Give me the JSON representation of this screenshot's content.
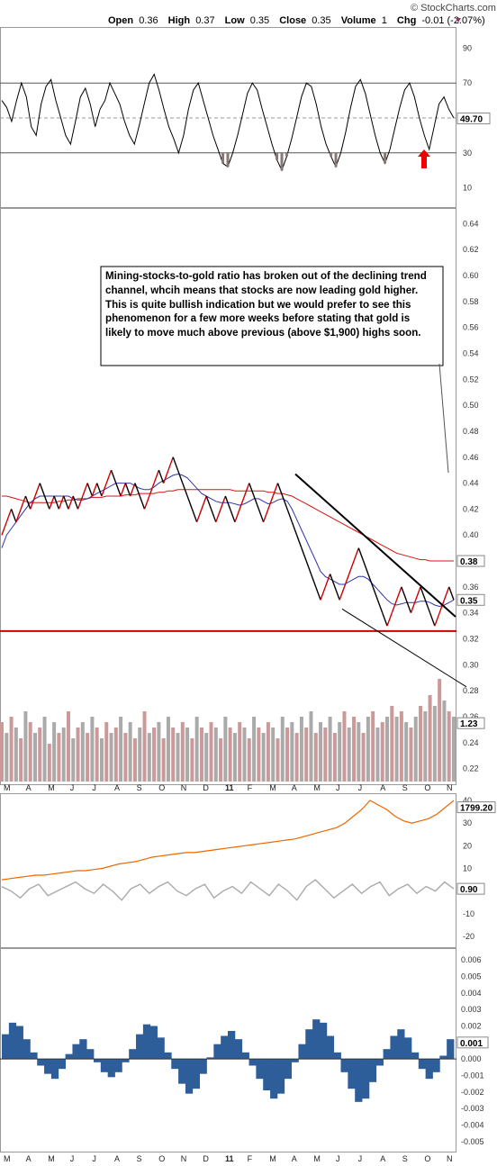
{
  "watermark": "© StockCharts.com",
  "header": {
    "open_label": "Open",
    "open": "0.36",
    "high_label": "High",
    "high": "0.37",
    "low_label": "Low",
    "low": "0.35",
    "close_label": "Close",
    "close": "0.35",
    "volume_label": "Volume",
    "volume": "1",
    "chg_label": "Chg",
    "chg": "-0.01 (-2.07%)",
    "chg_icon": "down-triangle-icon"
  },
  "annotation": "Mining-stocks-to-gold ratio has broken out of the declining trend channel, whcih means that stocks are now leading gold higher. This is quite bullish indication but we would prefer to see this phenomenon for a few more weeks before stating that gold is likely to move much above previous (above $1,900) highs soon.",
  "colors": {
    "price": "#000000",
    "up_bar": "#cc0000",
    "ma_short": "#3333aa",
    "ma_long": "#dd1111",
    "support": "#cc0000",
    "volume_a": "#cc9999",
    "volume_b": "#aaaaaa",
    "gold": "#ee6600",
    "corr": "#aaaaaa",
    "macd_hist": "#2e5e99",
    "arrow": "#ee0000"
  },
  "x_axis_months": [
    "M",
    "A",
    "M",
    "J",
    "J",
    "A",
    "S",
    "O",
    "N",
    "D",
    "11",
    "F",
    "M",
    "A",
    "M",
    "J",
    "J",
    "A",
    "S",
    "O",
    "N"
  ],
  "chart_data": [
    {
      "type": "line",
      "name": "rsi-panel",
      "yticks": [
        10,
        30,
        50,
        70,
        90
      ],
      "ylim": [
        0,
        100
      ],
      "bands": [
        30,
        70
      ],
      "last_value": "49.70",
      "values": [
        60,
        56,
        48,
        60,
        70,
        62,
        45,
        40,
        58,
        68,
        72,
        60,
        50,
        40,
        35,
        48,
        62,
        67,
        58,
        45,
        55,
        60,
        70,
        64,
        58,
        48,
        40,
        35,
        46,
        58,
        70,
        75,
        66,
        55,
        45,
        38,
        30,
        40,
        55,
        66,
        70,
        60,
        50,
        40,
        32,
        24,
        22,
        30,
        40,
        52,
        64,
        70,
        66,
        55,
        45,
        35,
        26,
        20,
        28,
        38,
        50,
        62,
        70,
        68,
        58,
        45,
        35,
        28,
        22,
        30,
        42,
        56,
        68,
        72,
        64,
        52,
        40,
        30,
        24,
        32,
        44,
        56,
        66,
        70,
        62,
        50,
        40,
        32,
        45,
        58,
        62,
        55,
        50
      ]
    },
    {
      "type": "line",
      "name": "ratio-panel",
      "yticks": [
        0.22,
        0.24,
        0.26,
        0.28,
        0.3,
        0.32,
        0.34,
        0.36,
        0.38,
        0.4,
        0.42,
        0.44,
        0.46,
        0.48,
        0.5,
        0.52,
        0.54,
        0.56,
        0.58,
        0.6,
        0.62,
        0.64
      ],
      "ylim": [
        0.21,
        0.65
      ],
      "last_close": "0.35",
      "ma_label": "0.38",
      "volume_label": "1.23",
      "close": [
        0.4,
        0.41,
        0.42,
        0.41,
        0.42,
        0.43,
        0.42,
        0.43,
        0.44,
        0.43,
        0.42,
        0.43,
        0.42,
        0.43,
        0.42,
        0.43,
        0.42,
        0.43,
        0.44,
        0.43,
        0.44,
        0.43,
        0.44,
        0.45,
        0.44,
        0.43,
        0.44,
        0.43,
        0.44,
        0.43,
        0.42,
        0.43,
        0.44,
        0.45,
        0.44,
        0.45,
        0.46,
        0.45,
        0.44,
        0.43,
        0.42,
        0.41,
        0.42,
        0.43,
        0.42,
        0.41,
        0.42,
        0.43,
        0.42,
        0.41,
        0.42,
        0.43,
        0.44,
        0.43,
        0.42,
        0.41,
        0.42,
        0.43,
        0.44,
        0.43,
        0.42,
        0.41,
        0.4,
        0.39,
        0.38,
        0.37,
        0.36,
        0.35,
        0.36,
        0.37,
        0.36,
        0.35,
        0.36,
        0.37,
        0.38,
        0.39,
        0.38,
        0.37,
        0.36,
        0.35,
        0.34,
        0.33,
        0.34,
        0.35,
        0.36,
        0.35,
        0.34,
        0.35,
        0.36,
        0.35,
        0.34,
        0.33,
        0.34,
        0.35,
        0.36,
        0.35
      ],
      "ma_short": [
        0.39,
        0.4,
        0.405,
        0.41,
        0.415,
        0.42,
        0.425,
        0.428,
        0.43,
        0.43,
        0.43,
        0.43,
        0.43,
        0.43,
        0.43,
        0.428,
        0.427,
        0.427,
        0.428,
        0.43,
        0.432,
        0.434,
        0.436,
        0.438,
        0.44,
        0.44,
        0.44,
        0.44,
        0.438,
        0.436,
        0.435,
        0.435,
        0.437,
        0.44,
        0.442,
        0.444,
        0.446,
        0.447,
        0.446,
        0.444,
        0.44,
        0.436,
        0.432,
        0.43,
        0.428,
        0.426,
        0.425,
        0.425,
        0.425,
        0.424,
        0.423,
        0.424,
        0.426,
        0.428,
        0.428,
        0.426,
        0.424,
        0.425,
        0.427,
        0.428,
        0.426,
        0.42,
        0.412,
        0.404,
        0.396,
        0.388,
        0.38,
        0.372,
        0.368,
        0.366,
        0.364,
        0.362,
        0.362,
        0.364,
        0.366,
        0.368,
        0.368,
        0.366,
        0.362,
        0.358,
        0.354,
        0.35,
        0.347,
        0.346,
        0.347,
        0.348,
        0.348,
        0.348,
        0.349,
        0.349,
        0.348,
        0.346,
        0.345,
        0.346,
        0.348,
        0.35
      ],
      "ma_long": [
        0.43,
        0.43,
        0.429,
        0.428,
        0.427,
        0.426,
        0.425,
        0.425,
        0.425,
        0.425,
        0.425,
        0.425,
        0.426,
        0.426,
        0.427,
        0.427,
        0.428,
        0.428,
        0.428,
        0.429,
        0.429,
        0.429,
        0.43,
        0.43,
        0.43,
        0.43,
        0.431,
        0.431,
        0.431,
        0.432,
        0.432,
        0.432,
        0.432,
        0.433,
        0.433,
        0.434,
        0.434,
        0.435,
        0.435,
        0.435,
        0.435,
        0.435,
        0.435,
        0.435,
        0.435,
        0.435,
        0.435,
        0.435,
        0.435,
        0.434,
        0.434,
        0.434,
        0.434,
        0.434,
        0.434,
        0.434,
        0.433,
        0.433,
        0.432,
        0.432,
        0.431,
        0.43,
        0.428,
        0.426,
        0.424,
        0.422,
        0.42,
        0.418,
        0.416,
        0.414,
        0.412,
        0.41,
        0.408,
        0.406,
        0.404,
        0.402,
        0.4,
        0.398,
        0.396,
        0.394,
        0.392,
        0.39,
        0.388,
        0.386,
        0.385,
        0.384,
        0.383,
        0.382,
        0.381,
        0.381,
        0.38,
        0.38,
        0.38,
        0.38,
        0.38,
        0.38
      ],
      "volume": [
        1.1,
        0.9,
        1.2,
        1.0,
        0.8,
        1.3,
        1.1,
        0.9,
        1.0,
        1.2,
        0.7,
        1.1,
        0.9,
        1.0,
        1.3,
        0.8,
        1.0,
        1.1,
        0.9,
        1.2,
        1.0,
        0.8,
        1.1,
        0.9,
        1.0,
        1.2,
        0.9,
        1.1,
        0.8,
        1.0,
        1.3,
        0.9,
        1.0,
        1.1,
        0.8,
        1.2,
        1.0,
        0.9,
        1.1,
        1.0,
        0.8,
        1.2,
        1.0,
        0.9,
        1.1,
        1.0,
        0.8,
        1.2,
        1.0,
        0.9,
        1.1,
        1.0,
        0.8,
        1.2,
        1.0,
        0.9,
        1.1,
        1.0,
        0.8,
        1.2,
        1.0,
        1.1,
        0.9,
        1.2,
        1.0,
        1.3,
        0.9,
        1.1,
        1.0,
        1.2,
        0.9,
        1.1,
        1.3,
        1.0,
        1.2,
        1.1,
        0.9,
        1.2,
        1.3,
        1.0,
        1.1,
        1.2,
        1.4,
        1.2,
        1.3,
        1.1,
        1.0,
        1.2,
        1.4,
        1.3,
        1.6,
        1.4,
        1.9,
        1.5,
        1.3,
        1.2
      ]
    },
    {
      "type": "line",
      "name": "gold-panel",
      "yticks": [
        -20,
        -10,
        0,
        10,
        20,
        30,
        40
      ],
      "ylim": [
        -24,
        42
      ],
      "gold_label": "1799.20",
      "corr_label": "0.90",
      "gold": [
        5,
        5.5,
        6,
        6.5,
        7,
        7,
        7.5,
        8,
        8.5,
        9,
        9,
        9.5,
        10,
        11,
        12,
        12.5,
        13,
        14,
        15,
        15.5,
        16,
        16.5,
        17,
        17,
        17.5,
        18,
        18.5,
        19,
        19.5,
        20,
        20.5,
        21,
        21.5,
        22,
        22.5,
        23,
        24,
        25,
        26,
        27,
        28,
        30,
        33,
        36,
        40,
        38,
        36,
        33,
        31,
        30,
        31,
        32,
        34,
        37,
        40
      ],
      "corr": [
        2,
        0,
        -3,
        1,
        3,
        -2,
        0,
        2,
        4,
        1,
        -1,
        3,
        0,
        -4,
        1,
        3,
        -1,
        2,
        4,
        0,
        -2,
        1,
        3,
        -3,
        0,
        2,
        -1,
        4,
        1,
        -2,
        3,
        0,
        -4,
        2,
        5,
        1,
        -3,
        0,
        3,
        -1,
        2,
        4,
        -2,
        1,
        3,
        -1,
        2,
        0,
        4,
        1
      ]
    },
    {
      "type": "bar",
      "name": "macd-panel",
      "yticks": [
        -0.005,
        -0.004,
        -0.003,
        -0.002,
        -0.001,
        0.0,
        0.001,
        0.002,
        0.003,
        0.004,
        0.005,
        0.006
      ],
      "ylim": [
        -0.0055,
        0.0065
      ],
      "last_value": "0.001",
      "values": [
        0.0015,
        0.0022,
        0.002,
        0.0012,
        0.0004,
        -0.0004,
        -0.0009,
        -0.0012,
        -0.0006,
        0.0003,
        0.0009,
        0.0012,
        0.0006,
        -0.0002,
        -0.0008,
        -0.0011,
        -0.0008,
        -0.0002,
        0.0006,
        0.0015,
        0.0021,
        0.002,
        0.0013,
        0.0004,
        -0.0006,
        -0.0015,
        -0.0021,
        -0.0018,
        -0.0009,
        0.0001,
        0.0009,
        0.0014,
        0.0017,
        0.0012,
        0.0004,
        -0.0004,
        -0.0012,
        -0.0019,
        -0.0024,
        -0.0021,
        -0.0012,
        -0.0002,
        0.0009,
        0.0018,
        0.0024,
        0.0022,
        0.0014,
        0.0004,
        -0.0008,
        -0.0018,
        -0.0026,
        -0.0024,
        -0.0014,
        -0.0004,
        0.0006,
        0.0014,
        0.0018,
        0.0013,
        0.0004,
        -0.0006,
        -0.0012,
        -0.0008,
        0.0002,
        0.0012
      ]
    }
  ]
}
